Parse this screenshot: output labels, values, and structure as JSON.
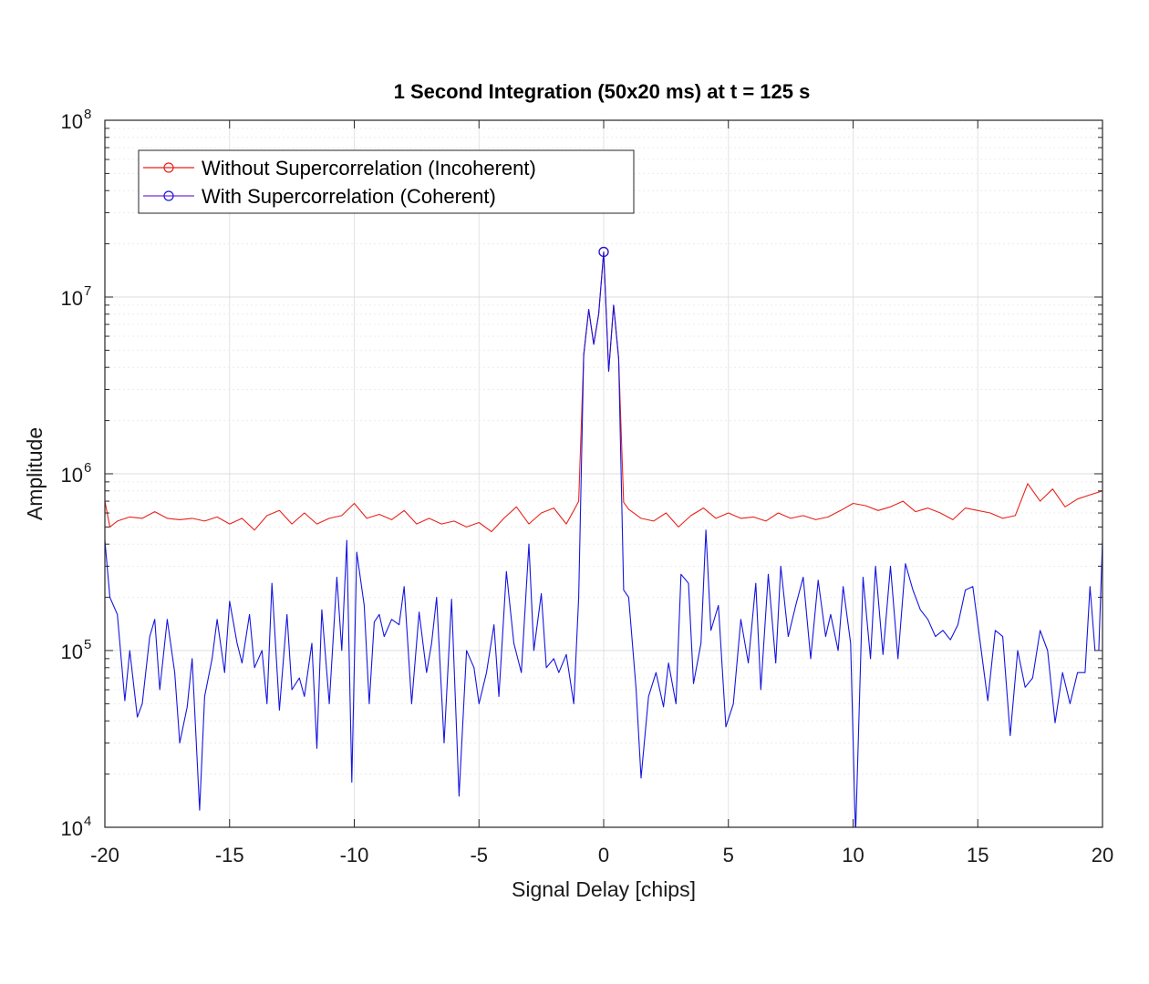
{
  "chart_data": {
    "type": "line",
    "title": "1 Second Integration (50x20 ms) at t = 125 s",
    "xlabel": "Signal Delay [chips]",
    "ylabel": "Amplitude",
    "xlim": [
      -20,
      20
    ],
    "ylim": [
      10000,
      100000000
    ],
    "yscale": "log",
    "grid": true,
    "minor_grid": true,
    "legend_position": "top-left",
    "x_ticks": [
      "-20",
      "-15",
      "-10",
      "-5",
      "0",
      "5",
      "10",
      "15",
      "20"
    ],
    "y_ticks": [
      {
        "base": "10",
        "exp": "4"
      },
      {
        "base": "10",
        "exp": "5"
      },
      {
        "base": "10",
        "exp": "6"
      },
      {
        "base": "10",
        "exp": "7"
      },
      {
        "base": "10",
        "exp": "8"
      }
    ],
    "series": [
      {
        "name": "Without Supercorrelation (Incoherent)",
        "color": "#e8221a",
        "marker": "circle-at-peak",
        "points": [
          [
            -20,
            700000
          ],
          [
            -19.8,
            500000
          ],
          [
            -19.5,
            540000
          ],
          [
            -19,
            570000
          ],
          [
            -18.5,
            560000
          ],
          [
            -18,
            610000
          ],
          [
            -17.5,
            560000
          ],
          [
            -17,
            550000
          ],
          [
            -16.5,
            560000
          ],
          [
            -16,
            540000
          ],
          [
            -15.5,
            570000
          ],
          [
            -15,
            520000
          ],
          [
            -14.5,
            560000
          ],
          [
            -14,
            480000
          ],
          [
            -13.5,
            580000
          ],
          [
            -13,
            620000
          ],
          [
            -12.5,
            520000
          ],
          [
            -12,
            600000
          ],
          [
            -11.5,
            520000
          ],
          [
            -11,
            560000
          ],
          [
            -10.5,
            580000
          ],
          [
            -10,
            680000
          ],
          [
            -9.5,
            560000
          ],
          [
            -9,
            590000
          ],
          [
            -8.5,
            550000
          ],
          [
            -8,
            620000
          ],
          [
            -7.5,
            520000
          ],
          [
            -7,
            560000
          ],
          [
            -6.5,
            520000
          ],
          [
            -6,
            540000
          ],
          [
            -5.5,
            500000
          ],
          [
            -5,
            530000
          ],
          [
            -4.5,
            470000
          ],
          [
            -4,
            560000
          ],
          [
            -3.5,
            650000
          ],
          [
            -3,
            520000
          ],
          [
            -2.5,
            600000
          ],
          [
            -2,
            640000
          ],
          [
            -1.5,
            520000
          ],
          [
            -1.2,
            620000
          ],
          [
            -1,
            700000
          ],
          [
            -0.8,
            4700000
          ],
          [
            -0.6,
            8500000
          ],
          [
            -0.4,
            5400000
          ],
          [
            -0.2,
            8000000
          ],
          [
            0,
            18000000
          ],
          [
            0.2,
            3800000
          ],
          [
            0.4,
            9000000
          ],
          [
            0.6,
            4500000
          ],
          [
            0.8,
            690000
          ],
          [
            1,
            630000
          ],
          [
            1.5,
            560000
          ],
          [
            2,
            540000
          ],
          [
            2.5,
            600000
          ],
          [
            3,
            500000
          ],
          [
            3.5,
            580000
          ],
          [
            4,
            640000
          ],
          [
            4.5,
            560000
          ],
          [
            5,
            600000
          ],
          [
            5.5,
            560000
          ],
          [
            6,
            570000
          ],
          [
            6.5,
            540000
          ],
          [
            7,
            600000
          ],
          [
            7.5,
            560000
          ],
          [
            8,
            580000
          ],
          [
            8.5,
            550000
          ],
          [
            9,
            570000
          ],
          [
            9.5,
            620000
          ],
          [
            10,
            680000
          ],
          [
            10.5,
            660000
          ],
          [
            11,
            620000
          ],
          [
            11.5,
            650000
          ],
          [
            12,
            700000
          ],
          [
            12.5,
            610000
          ],
          [
            13,
            640000
          ],
          [
            13.5,
            600000
          ],
          [
            14,
            550000
          ],
          [
            14.5,
            640000
          ],
          [
            15,
            620000
          ],
          [
            15.5,
            600000
          ],
          [
            16,
            560000
          ],
          [
            16.5,
            580000
          ],
          [
            17,
            880000
          ],
          [
            17.5,
            700000
          ],
          [
            18,
            820000
          ],
          [
            18.5,
            650000
          ],
          [
            19,
            720000
          ],
          [
            19.5,
            760000
          ],
          [
            20,
            800000
          ]
        ]
      },
      {
        "name": "With Supercorrelation (Coherent)",
        "color": "#1515e0",
        "marker": "circle-at-peak",
        "points": [
          [
            -20,
            420000
          ],
          [
            -19.8,
            200000
          ],
          [
            -19.5,
            160000
          ],
          [
            -19.2,
            52000
          ],
          [
            -19,
            100000
          ],
          [
            -18.7,
            42000
          ],
          [
            -18.5,
            50000
          ],
          [
            -18.2,
            120000
          ],
          [
            -18,
            150000
          ],
          [
            -17.8,
            60000
          ],
          [
            -17.5,
            150000
          ],
          [
            -17.2,
            75000
          ],
          [
            -17,
            30000
          ],
          [
            -16.7,
            48000
          ],
          [
            -16.5,
            90000
          ],
          [
            -16.2,
            12500
          ],
          [
            -16,
            55000
          ],
          [
            -15.7,
            90000
          ],
          [
            -15.5,
            150000
          ],
          [
            -15.2,
            75000
          ],
          [
            -15,
            190000
          ],
          [
            -14.7,
            110000
          ],
          [
            -14.5,
            85000
          ],
          [
            -14.2,
            160000
          ],
          [
            -14,
            80000
          ],
          [
            -13.7,
            100000
          ],
          [
            -13.5,
            50000
          ],
          [
            -13.3,
            240000
          ],
          [
            -13,
            46000
          ],
          [
            -12.7,
            160000
          ],
          [
            -12.5,
            60000
          ],
          [
            -12.2,
            70000
          ],
          [
            -12,
            55000
          ],
          [
            -11.7,
            110000
          ],
          [
            -11.5,
            28000
          ],
          [
            -11.3,
            170000
          ],
          [
            -11,
            50000
          ],
          [
            -10.7,
            260000
          ],
          [
            -10.5,
            100000
          ],
          [
            -10.3,
            420000
          ],
          [
            -10.1,
            18000
          ],
          [
            -9.9,
            360000
          ],
          [
            -9.6,
            180000
          ],
          [
            -9.4,
            50000
          ],
          [
            -9.2,
            145000
          ],
          [
            -9,
            160000
          ],
          [
            -8.8,
            120000
          ],
          [
            -8.5,
            150000
          ],
          [
            -8.2,
            140000
          ],
          [
            -8,
            230000
          ],
          [
            -7.7,
            50000
          ],
          [
            -7.4,
            165000
          ],
          [
            -7.1,
            75000
          ],
          [
            -6.9,
            110000
          ],
          [
            -6.7,
            200000
          ],
          [
            -6.4,
            30000
          ],
          [
            -6.1,
            195000
          ],
          [
            -5.8,
            15000
          ],
          [
            -5.5,
            100000
          ],
          [
            -5.2,
            80000
          ],
          [
            -5,
            50000
          ],
          [
            -4.7,
            75000
          ],
          [
            -4.4,
            140000
          ],
          [
            -4.2,
            55000
          ],
          [
            -3.9,
            280000
          ],
          [
            -3.6,
            110000
          ],
          [
            -3.3,
            75000
          ],
          [
            -3,
            400000
          ],
          [
            -2.8,
            100000
          ],
          [
            -2.5,
            210000
          ],
          [
            -2.3,
            80000
          ],
          [
            -2,
            90000
          ],
          [
            -1.8,
            75000
          ],
          [
            -1.5,
            95000
          ],
          [
            -1.2,
            50000
          ],
          [
            -1,
            200000
          ],
          [
            -0.8,
            4700000
          ],
          [
            -0.6,
            8500000
          ],
          [
            -0.4,
            5400000
          ],
          [
            -0.2,
            8000000
          ],
          [
            0,
            18000000
          ],
          [
            0.2,
            3800000
          ],
          [
            0.4,
            9000000
          ],
          [
            0.6,
            4500000
          ],
          [
            0.8,
            220000
          ],
          [
            1,
            200000
          ],
          [
            1.3,
            60000
          ],
          [
            1.5,
            19000
          ],
          [
            1.8,
            55000
          ],
          [
            2.1,
            75000
          ],
          [
            2.4,
            48000
          ],
          [
            2.6,
            85000
          ],
          [
            2.9,
            50000
          ],
          [
            3.1,
            270000
          ],
          [
            3.4,
            240000
          ],
          [
            3.6,
            65000
          ],
          [
            3.9,
            110000
          ],
          [
            4.1,
            480000
          ],
          [
            4.3,
            130000
          ],
          [
            4.6,
            180000
          ],
          [
            4.9,
            37000
          ],
          [
            5.2,
            50000
          ],
          [
            5.5,
            150000
          ],
          [
            5.8,
            85000
          ],
          [
            6.1,
            240000
          ],
          [
            6.3,
            60000
          ],
          [
            6.6,
            270000
          ],
          [
            6.9,
            85000
          ],
          [
            7.1,
            300000
          ],
          [
            7.4,
            120000
          ],
          [
            7.7,
            180000
          ],
          [
            8,
            260000
          ],
          [
            8.3,
            90000
          ],
          [
            8.6,
            250000
          ],
          [
            8.9,
            120000
          ],
          [
            9.1,
            160000
          ],
          [
            9.4,
            100000
          ],
          [
            9.6,
            230000
          ],
          [
            9.9,
            110000
          ],
          [
            10.1,
            9000
          ],
          [
            10.4,
            260000
          ],
          [
            10.7,
            90000
          ],
          [
            10.9,
            300000
          ],
          [
            11.2,
            95000
          ],
          [
            11.5,
            300000
          ],
          [
            11.8,
            90000
          ],
          [
            12.1,
            310000
          ],
          [
            12.4,
            220000
          ],
          [
            12.7,
            170000
          ],
          [
            13,
            150000
          ],
          [
            13.3,
            120000
          ],
          [
            13.6,
            130000
          ],
          [
            13.9,
            115000
          ],
          [
            14.2,
            140000
          ],
          [
            14.5,
            220000
          ],
          [
            14.8,
            230000
          ],
          [
            15.1,
            110000
          ],
          [
            15.4,
            52000
          ],
          [
            15.7,
            130000
          ],
          [
            16,
            120000
          ],
          [
            16.3,
            33000
          ],
          [
            16.6,
            100000
          ],
          [
            16.9,
            62000
          ],
          [
            17.2,
            70000
          ],
          [
            17.5,
            130000
          ],
          [
            17.8,
            100000
          ],
          [
            18.1,
            39000
          ],
          [
            18.4,
            75000
          ],
          [
            18.7,
            50000
          ],
          [
            19,
            75000
          ],
          [
            19.3,
            75000
          ],
          [
            19.5,
            230000
          ],
          [
            19.7,
            100000
          ],
          [
            19.85,
            100000
          ],
          [
            20,
            420000
          ]
        ]
      }
    ]
  }
}
